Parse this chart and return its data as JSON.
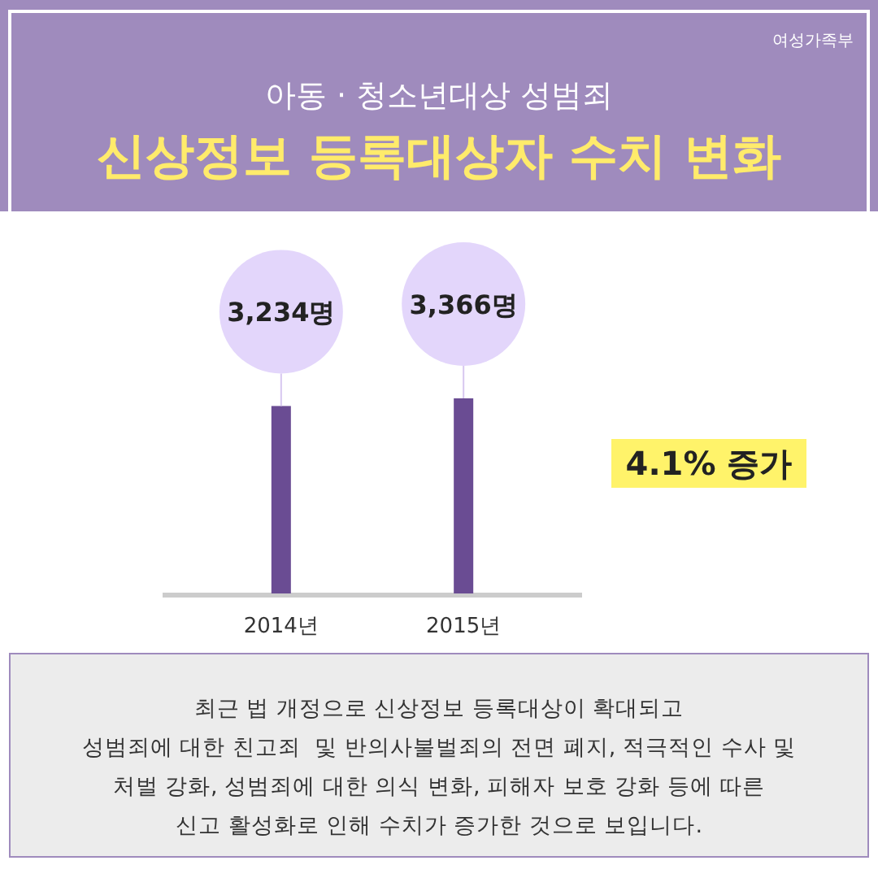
{
  "chart_data": {
    "type": "bar",
    "subtitle": "아동 · 청소년대상 성범죄",
    "title": "신상정보 등록대상자 수치 변화",
    "categories": [
      "2014년",
      "2015년"
    ],
    "values": [
      3234,
      3366
    ],
    "value_labels": [
      "3,234명",
      "3,366명"
    ],
    "color": "#6a4c93",
    "annotations": [
      "4.1% 증가",
      "최근 법 개정으로 신상정보 등록대상이 확대되고\n성범죄에 대한 친고죄  및 반의사불벌죄의 전면 폐지, 적극적인 수사 및\n처벌 강화, 성범죄에 대한 의식 변화, 피해자 보호 강화 등에 따른\n신고 활성화로 인해 수치가 증가한 것으로 보입니다.",
      "여성가족부"
    ]
  }
}
